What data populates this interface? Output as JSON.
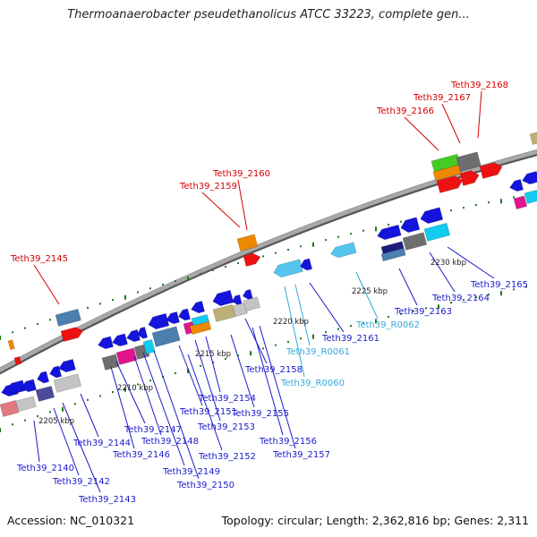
{
  "header": {
    "title": "Thermoanaerobacter pseudethanolicus ATCC 33223, complete gen..."
  },
  "footer": {
    "accession": "Accession: NC_010321",
    "summary": "Topology: circular; Length: 2,362,816 bp; Genes: 2,311"
  },
  "colors": {
    "backbone": "#8c8c8c",
    "tick": "#1e7a1e",
    "red_label": "#d40000",
    "blue_label": "#1a1acc",
    "cyan_label": "#33aadd",
    "gene_blue": "#1414dd",
    "gene_red": "#ee1111",
    "gene_orange": "#ee8800",
    "gene_steel": "#4a7fb0",
    "gene_gray": "#6e6e6e",
    "gene_silver": "#c4c4c4",
    "gene_magenta": "#e0158e",
    "gene_cyan": "#11ccee",
    "gene_skyblue": "#55c4ee",
    "gene_khaki": "#bdb076",
    "gene_navy": "#1c1c7a",
    "gene_green": "#44cc22",
    "gene_slate": "#4b4b9a",
    "gene_pink": "#e07a80"
  },
  "scale_labels": [
    "2205 kbp",
    "2210 kbp",
    "2215 kbp",
    "2220 kbp",
    "2225 kbp",
    "2230 kbp"
  ],
  "top_labels": [
    "Teth39_2145",
    "Teth39_2159",
    "Teth39_2160",
    "Teth39_2166",
    "Teth39_2167",
    "Teth39_2168"
  ],
  "bottom_labels": [
    "Teth39_2140",
    "Teth39_2142",
    "Teth39_2143",
    "Teth39_2144",
    "Teth39_2146",
    "Teth39_2147",
    "Teth39_2148",
    "Teth39_2149",
    "Teth39_2150",
    "Teth39_2151",
    "Teth39_2152",
    "Teth39_2153",
    "Teth39_2154",
    "Teth39_2155",
    "Teth39_2156",
    "Teth39_2157",
    "Teth39_2158",
    "Teth39_R0060",
    "Teth39_R0061",
    "Teth39_2161",
    "Teth39_R0062",
    "Teth39_2163",
    "Teth39_2164",
    "Teth39_2165"
  ]
}
